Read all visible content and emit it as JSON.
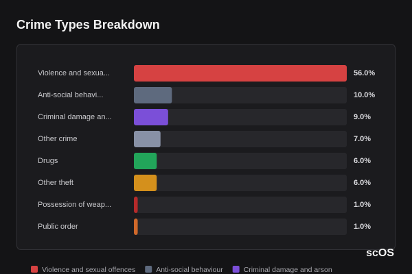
{
  "chart_data": {
    "type": "hbar",
    "title": "Crime Types Breakdown",
    "categories": [
      "Violence and sexua...",
      "Anti-social behavi...",
      "Criminal damage an...",
      "Other crime",
      "Drugs",
      "Other theft",
      "Possession of weap...",
      "Public order"
    ],
    "values": [
      56.0,
      10.0,
      9.0,
      7.0,
      6.0,
      6.0,
      1.0,
      1.0
    ],
    "value_labels": [
      "56.0%",
      "10.0%",
      "9.0%",
      "7.0%",
      "6.0%",
      "6.0%",
      "1.0%",
      "1.0%"
    ],
    "colors": [
      "#d64242",
      "#5e6a7e",
      "#7b4fd8",
      "#8891a6",
      "#22a55a",
      "#d4901c",
      "#b52a2a",
      "#d0682a"
    ],
    "xlim": [
      0,
      56
    ],
    "legend": [
      {
        "name": "Violence and sexual offences",
        "color": "#d64242"
      },
      {
        "name": "Anti-social behaviour",
        "color": "#5e6a7e"
      },
      {
        "name": "Criminal damage and arson",
        "color": "#7b4fd8"
      }
    ],
    "watermark": "scOS"
  }
}
